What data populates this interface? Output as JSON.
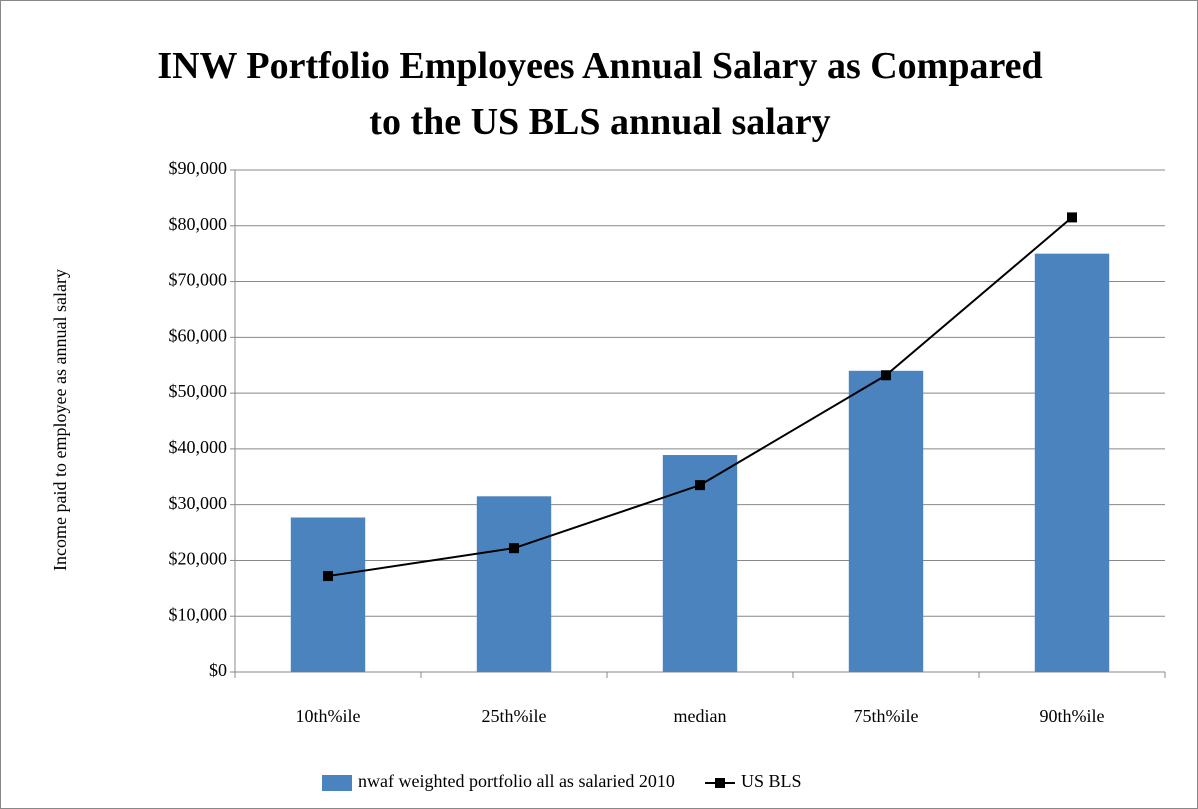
{
  "chart_data": {
    "type": "bar",
    "title": "INW Portfolio Employees Annual Salary as Compared to the US BLS annual salary",
    "y_label": "Income paid to employee as annual salary",
    "categories": [
      "10th%ile",
      "25th%ile",
      "median",
      "75th%ile",
      "90th%ile"
    ],
    "series": [
      {
        "name": "nwaf weighted portfolio all as salaried 2010",
        "type": "bar",
        "color": "#4a83be",
        "values": [
          27700,
          31500,
          38900,
          54000,
          75000
        ]
      },
      {
        "name": "US BLS",
        "type": "line",
        "color": "#000000",
        "values": [
          17200,
          22200,
          33500,
          53200,
          81500
        ]
      }
    ],
    "ylim": [
      0,
      90000
    ],
    "yticks": [
      {
        "value": 0,
        "label": "$0"
      },
      {
        "value": 10000,
        "label": "$10,000"
      },
      {
        "value": 20000,
        "label": "$20,000"
      },
      {
        "value": 30000,
        "label": "$30,000"
      },
      {
        "value": 40000,
        "label": "$40,000"
      },
      {
        "value": 50000,
        "label": "$50,000"
      },
      {
        "value": 60000,
        "label": "$60,000"
      },
      {
        "value": 70000,
        "label": "$70,000"
      },
      {
        "value": 80000,
        "label": "$80,000"
      },
      {
        "value": 90000,
        "label": "$90,000"
      }
    ],
    "grid": true,
    "legend": "bottom"
  }
}
